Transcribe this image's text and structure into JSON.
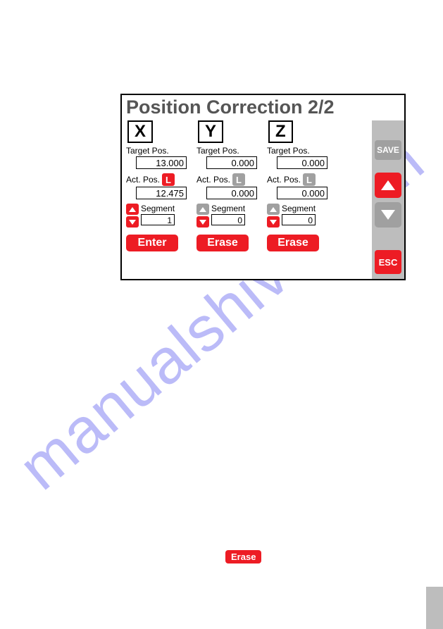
{
  "title": "Position Correction  2/2",
  "watermark": "manualshive.com",
  "colors": {
    "accent": "#ed1c24",
    "grey": "#a0a0a0",
    "sidebar": "#bdbdbd",
    "border": "#000000",
    "bg": "#ffffff",
    "title": "#555555",
    "watermark": "#6a6af0"
  },
  "sidebar": {
    "save": "SAVE",
    "esc": "ESC"
  },
  "labels": {
    "target": "Target Pos.",
    "act": "Act. Pos.",
    "segment": "Segment",
    "l": "L"
  },
  "axes": [
    {
      "name": "X",
      "target": "13.000",
      "act": "12.475",
      "segment": "1",
      "l_active": true,
      "spin_active": true,
      "button": "Enter"
    },
    {
      "name": "Y",
      "target": "0.000",
      "act": "0.000",
      "segment": "0",
      "l_active": false,
      "spin_active": false,
      "button": "Erase"
    },
    {
      "name": "Z",
      "target": "0.000",
      "act": "0.000",
      "segment": "0",
      "l_active": false,
      "spin_active": false,
      "button": "Erase"
    }
  ],
  "floating_erase": "Erase"
}
